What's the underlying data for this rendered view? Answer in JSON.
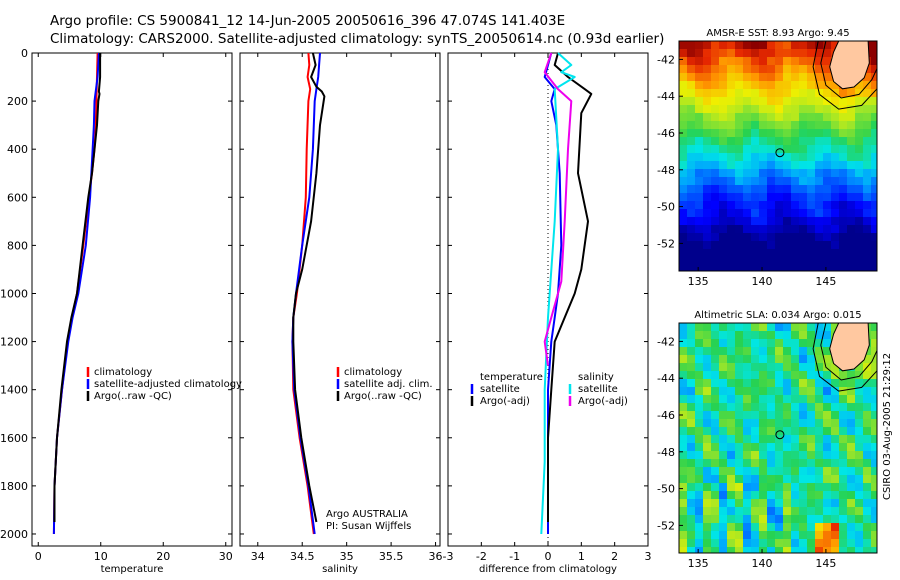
{
  "header": {
    "line1": "Argo profile: CS 5900841_12 14-Jun-2005 20050616_396 47.074S 141.403E",
    "line2": "Climatology: CARS2000. Satellite-adjusted climatology: synTS_20050614.nc (0.93d earlier)"
  },
  "side_label": "CSIRO 03-Aug-2005 21:29:12",
  "colors": {
    "climatology": "#ff0000",
    "satellite": "#0000ff",
    "argo": "#000000",
    "sal_sat": "#00e5ee",
    "sal_argo": "#ee00ee",
    "coast": "#ffc8a0"
  },
  "chart_data": [
    {
      "id": "temperature",
      "type": "line",
      "xlabel": "temperature",
      "xlim": [
        -1,
        31
      ],
      "ylim": [
        0,
        2050
      ],
      "xticks": [
        "0",
        "10",
        "20",
        "30"
      ],
      "xtick_values": [
        0,
        10,
        20,
        30
      ],
      "yticks": [
        "0",
        "200",
        "400",
        "600",
        "800",
        "1000",
        "1200",
        "1400",
        "1600",
        "1800",
        "2000"
      ],
      "ytick_values": [
        0,
        200,
        400,
        600,
        800,
        1000,
        1200,
        1400,
        1600,
        1800,
        2000
      ],
      "legend_position": "right-middle",
      "series": [
        {
          "name": "climatology",
          "color": "#ff0000",
          "x": [
            9.5,
            9.4,
            9.3,
            9.2,
            9.0,
            8.6,
            8.1,
            7.2,
            6.2,
            5.4,
            4.7,
            3.8,
            3.0,
            2.6,
            2.5
          ],
          "y": [
            0,
            100,
            200,
            300,
            400,
            500,
            600,
            800,
            1000,
            1100,
            1200,
            1400,
            1600,
            1800,
            2000
          ]
        },
        {
          "name": "satellite-adjusted climatology",
          "color": "#0000ff",
          "x": [
            9.7,
            9.5,
            9.1,
            9.0,
            8.9,
            8.6,
            8.3,
            7.6,
            6.4,
            5.5,
            4.8,
            3.8,
            3.0,
            2.6,
            2.5
          ],
          "y": [
            0,
            100,
            180,
            200,
            300,
            450,
            600,
            800,
            1000,
            1100,
            1200,
            1400,
            1600,
            1800,
            2000
          ]
        },
        {
          "name": "Argo(..raw -QC)",
          "color": "#000000",
          "x": [
            9.9,
            9.9,
            9.7,
            9.8,
            9.6,
            9.4,
            9.0,
            8.6,
            8.0,
            7.1,
            6.2,
            5.3,
            4.6,
            3.7,
            3.0,
            2.6,
            2.6
          ],
          "y": [
            0,
            100,
            160,
            170,
            200,
            300,
            400,
            500,
            600,
            800,
            1000,
            1100,
            1200,
            1400,
            1600,
            1800,
            1950
          ]
        }
      ]
    },
    {
      "id": "salinity",
      "type": "line",
      "xlabel": "salinity",
      "xlim": [
        33.8,
        36.05
      ],
      "ylim": [
        0,
        2050
      ],
      "xticks": [
        "34",
        "34.5",
        "35",
        "35.5",
        "36"
      ],
      "xtick_values": [
        34,
        34.5,
        35,
        35.5,
        36
      ],
      "legend_position": "right-middle",
      "annotation": [
        "Argo AUSTRALIA",
        "PI: Susan Wijffels"
      ],
      "series": [
        {
          "name": "climatology",
          "color": "#ff0000",
          "x": [
            34.57,
            34.58,
            34.56,
            34.59,
            34.57,
            34.55,
            34.54,
            34.5,
            34.44,
            34.4,
            34.39,
            34.4,
            34.47,
            34.56,
            34.63
          ],
          "y": [
            0,
            50,
            100,
            150,
            200,
            400,
            600,
            800,
            1000,
            1100,
            1200,
            1400,
            1600,
            1800,
            2000
          ]
        },
        {
          "name": "satellite adj. clim.",
          "color": "#0000ff",
          "x": [
            34.7,
            34.69,
            34.68,
            34.66,
            34.64,
            34.62,
            34.58,
            34.5,
            34.43,
            34.4,
            34.39,
            34.41,
            34.48,
            34.57,
            34.64
          ],
          "y": [
            0,
            50,
            100,
            150,
            200,
            400,
            600,
            800,
            1000,
            1100,
            1200,
            1400,
            1600,
            1800,
            2000
          ]
        },
        {
          "name": "Argo(..raw -QC)",
          "color": "#000000",
          "x": [
            34.62,
            34.65,
            34.6,
            34.66,
            34.72,
            34.75,
            34.7,
            34.66,
            34.6,
            34.5,
            34.43,
            34.4,
            34.4,
            34.42,
            34.49,
            34.58,
            34.66
          ],
          "y": [
            0,
            50,
            100,
            140,
            160,
            180,
            300,
            500,
            700,
            900,
            1000,
            1100,
            1200,
            1400,
            1600,
            1800,
            1950
          ]
        }
      ]
    },
    {
      "id": "difference",
      "type": "line",
      "xlabel": "difference from climatology",
      "xlim": [
        -3,
        3
      ],
      "ylim": [
        0,
        2050
      ],
      "xticks": [
        "-3",
        "-2",
        "-1",
        "0",
        "1",
        "2",
        "3"
      ],
      "xtick_values": [
        -3,
        -2,
        -1,
        0,
        1,
        2,
        3
      ],
      "legend_position": "right-middle",
      "legend_groups": [
        {
          "title": "temperature",
          "entries": [
            {
              "name": "satellite",
              "color": "#0000ff"
            },
            {
              "name": "Argo(-adj)",
              "color": "#000000"
            }
          ]
        },
        {
          "title": "salinity",
          "entries": [
            {
              "name": "satellite",
              "color": "#00e5ee"
            },
            {
              "name": "Argo(-adj)",
              "color": "#ee00ee"
            }
          ]
        }
      ],
      "series": [
        {
          "name": "temperature satellite",
          "color": "#0000ff",
          "x": [
            0.1,
            0.0,
            -0.1,
            0.2,
            0.1,
            0.25,
            0.35,
            0.4,
            0.3,
            0.2,
            0.1,
            0.0,
            0.0,
            0.0
          ],
          "y": [
            0,
            50,
            100,
            150,
            200,
            300,
            500,
            800,
            1000,
            1100,
            1200,
            1400,
            1600,
            2000
          ]
        },
        {
          "name": "temperature Argo(-adj)",
          "color": "#000000",
          "x": [
            0.3,
            0.2,
            0.6,
            1.1,
            1.3,
            1.0,
            0.9,
            1.2,
            1.0,
            0.8,
            0.5,
            0.2,
            0.1,
            0.0,
            0.0
          ],
          "y": [
            0,
            50,
            100,
            150,
            170,
            250,
            500,
            700,
            900,
            1000,
            1100,
            1200,
            1400,
            1600,
            1950
          ]
        },
        {
          "name": "salinity satellite",
          "color": "#00e5ee",
          "x": [
            0.3,
            0.7,
            0.4,
            0.8,
            0.2,
            0.3,
            0.2,
            0.0,
            -0.1,
            -0.1,
            -0.2
          ],
          "y": [
            0,
            50,
            80,
            100,
            150,
            400,
            700,
            1100,
            1400,
            1700,
            2000
          ]
        },
        {
          "name": "salinity Argo(-adj)",
          "color": "#ee00ee",
          "x": [
            0.1,
            -0.1,
            0.3,
            0.7,
            0.6,
            0.5,
            0.4,
            0.1,
            -0.1,
            0.0
          ],
          "y": [
            0,
            80,
            150,
            200,
            400,
            700,
            950,
            1100,
            1200,
            1300
          ]
        }
      ]
    },
    {
      "id": "sst_map",
      "type": "heatmap",
      "title": "AMSR-E SST: 8.93 Argo: 9.45",
      "xlim": [
        133.5,
        149
      ],
      "ylim": [
        -53.5,
        -41
      ],
      "xticks": [
        "135",
        "140",
        "145"
      ],
      "xtick_values": [
        135,
        140,
        145
      ],
      "yticks": [
        "-42",
        "-44",
        "-46",
        "-48",
        "-50",
        "-52"
      ],
      "ytick_values": [
        -42,
        -44,
        -46,
        -48,
        -50,
        -52
      ],
      "marker": {
        "lon": 141.4,
        "lat": -47.07
      }
    },
    {
      "id": "sla_map",
      "type": "heatmap",
      "title": "Altimetric SLA: 0.034 Argo: 0.015",
      "xlim": [
        133.5,
        149
      ],
      "ylim": [
        -53.5,
        -41
      ],
      "xticks": [
        "135",
        "140",
        "145"
      ],
      "xtick_values": [
        135,
        140,
        145
      ],
      "yticks": [
        "-42",
        "-44",
        "-46",
        "-48",
        "-50",
        "-52"
      ],
      "ytick_values": [
        -42,
        -44,
        -46,
        -48,
        -50,
        -52
      ],
      "marker": {
        "lon": 141.4,
        "lat": -47.07
      }
    }
  ]
}
